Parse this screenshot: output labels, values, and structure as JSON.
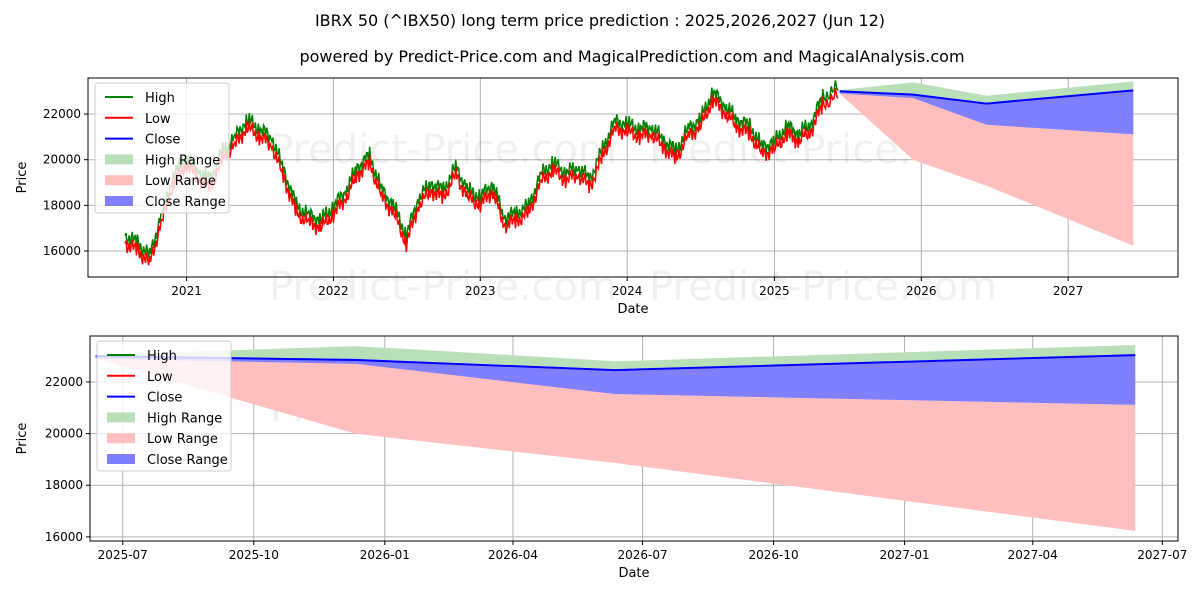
{
  "title": "IBRX 50 (^IBX50) long term price prediction : 2025,2026,2027 (Jun 12)",
  "subtitle": "powered by Predict-Price.com and MagicalPrediction.com and MagicalAnalysis.com",
  "watermark": "Predict-Price.com",
  "colors": {
    "high": "#008000",
    "low": "#ff0000",
    "close": "#0000ff",
    "high_range": "#b9dfb9",
    "low_range": "#ffbfbf",
    "close_range": "#8080ff"
  },
  "chart_data": [
    {
      "type": "line",
      "ylabel": "Price",
      "xlabel": "Date",
      "xlim": [
        "2020-05-01",
        "2027-10-01"
      ],
      "ylim": [
        14860,
        23580
      ],
      "xticks": [
        {
          "date": "2021-01-01",
          "label": "2021"
        },
        {
          "date": "2022-01-01",
          "label": "2022"
        },
        {
          "date": "2023-01-01",
          "label": "2023"
        },
        {
          "date": "2024-01-01",
          "label": "2024"
        },
        {
          "date": "2025-01-01",
          "label": "2025"
        },
        {
          "date": "2026-01-01",
          "label": "2026"
        },
        {
          "date": "2027-01-01",
          "label": "2027"
        }
      ],
      "yticks": [
        16000,
        18000,
        20000,
        22000
      ],
      "grid": true,
      "legend": "upper-left",
      "legend_entries": [
        "High",
        "Low",
        "Close",
        "High Range",
        "Low Range",
        "Close Range"
      ],
      "history": {
        "dates": [
          "2020-08-01",
          "2020-09-01",
          "2020-10-01",
          "2020-11-01",
          "2020-12-01",
          "2021-01-01",
          "2021-02-01",
          "2021-03-01",
          "2021-04-01",
          "2021-05-01",
          "2021-06-01",
          "2021-07-01",
          "2021-08-01",
          "2021-09-01",
          "2021-10-01",
          "2021-11-01",
          "2021-12-01",
          "2022-01-01",
          "2022-02-01",
          "2022-03-01",
          "2022-04-01",
          "2022-05-01",
          "2022-06-01",
          "2022-07-01",
          "2022-08-01",
          "2022-09-01",
          "2022-10-01",
          "2022-11-01",
          "2022-12-01",
          "2023-01-01",
          "2023-02-01",
          "2023-03-01",
          "2023-04-01",
          "2023-05-01",
          "2023-06-01",
          "2023-07-01",
          "2023-08-01",
          "2023-09-01",
          "2023-10-01",
          "2023-11-01",
          "2023-12-01",
          "2024-01-01",
          "2024-02-01",
          "2024-03-01",
          "2024-04-01",
          "2024-05-01",
          "2024-06-01",
          "2024-07-01",
          "2024-08-01",
          "2024-09-01",
          "2024-10-01",
          "2024-11-01",
          "2024-12-01",
          "2025-01-01",
          "2025-02-01",
          "2025-03-01",
          "2025-04-01",
          "2025-05-01",
          "2025-06-12"
        ],
        "close": [
          16500,
          16200,
          15600,
          17500,
          19200,
          20000,
          19300,
          19000,
          20200,
          20800,
          21600,
          21200,
          20800,
          19300,
          17800,
          17400,
          17200,
          17800,
          18500,
          19500,
          20000,
          18500,
          17800,
          16500,
          18200,
          18800,
          18500,
          19500,
          18500,
          18200,
          18800,
          17300,
          17500,
          17800,
          19200,
          19700,
          19300,
          19500,
          19000,
          20300,
          21500,
          21400,
          21200,
          21300,
          20700,
          20200,
          21200,
          21600,
          22800,
          22200,
          21600,
          21300,
          20400,
          20600,
          21300,
          21000,
          21400,
          22600,
          23000
        ]
      },
      "forecast": {
        "dates": [
          "2025-06-12",
          "2025-12-12",
          "2026-06-12",
          "2027-06-12"
        ],
        "close": [
          23000,
          22850,
          22460,
          23040
        ],
        "high_range": [
          [
            22950,
            23050
          ],
          [
            22900,
            23390
          ],
          [
            22500,
            22800
          ],
          [
            23060,
            23430
          ]
        ],
        "close_range": [
          [
            22900,
            23000
          ],
          [
            22700,
            22900
          ],
          [
            21530,
            22460
          ],
          [
            21110,
            23040
          ]
        ],
        "low_range": [
          [
            22900,
            23000
          ],
          [
            19990,
            22800
          ],
          [
            18860,
            21530
          ],
          [
            16230,
            21110
          ]
        ]
      }
    },
    {
      "type": "line",
      "ylabel": "Price",
      "xlabel": "Date",
      "xlim": [
        "2025-06-08",
        "2027-07-12"
      ],
      "ylim": [
        15840,
        23780
      ],
      "xticks": [
        {
          "date": "2025-07-01",
          "label": "2025-07"
        },
        {
          "date": "2025-10-01",
          "label": "2025-10"
        },
        {
          "date": "2026-01-01",
          "label": "2026-01"
        },
        {
          "date": "2026-04-01",
          "label": "2026-04"
        },
        {
          "date": "2026-07-01",
          "label": "2026-07"
        },
        {
          "date": "2026-10-01",
          "label": "2026-10"
        },
        {
          "date": "2027-01-01",
          "label": "2027-01"
        },
        {
          "date": "2027-04-01",
          "label": "2027-04"
        },
        {
          "date": "2027-07-01",
          "label": "2027-07"
        }
      ],
      "yticks": [
        16000,
        18000,
        20000,
        22000
      ],
      "grid": true,
      "legend": "upper-left",
      "legend_entries": [
        "High",
        "Low",
        "Close",
        "High Range",
        "Low Range",
        "Close Range"
      ]
    }
  ]
}
